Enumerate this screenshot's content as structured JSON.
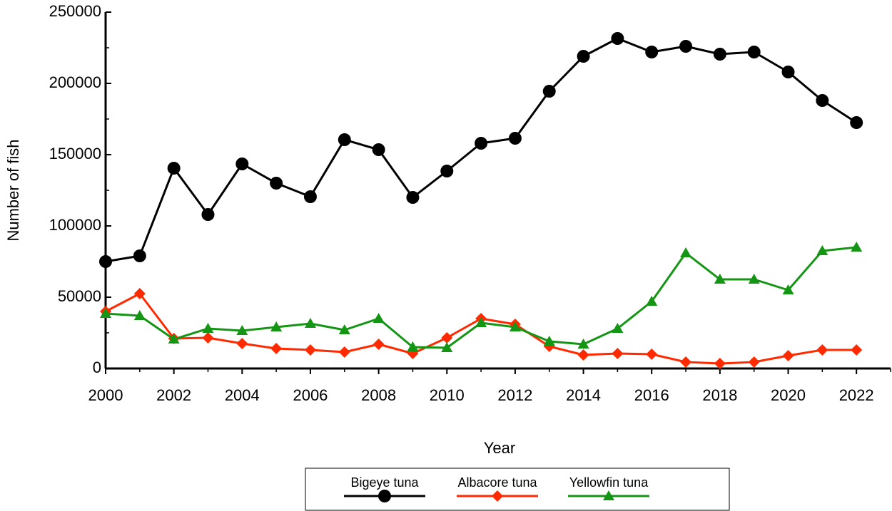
{
  "chart_data": {
    "type": "line",
    "x_label": "Year",
    "y_label": "Number of fish",
    "x": [
      2000,
      2001,
      2002,
      2003,
      2004,
      2005,
      2006,
      2007,
      2008,
      2009,
      2010,
      2011,
      2012,
      2013,
      2014,
      2015,
      2016,
      2017,
      2018,
      2019,
      2020,
      2021,
      2022
    ],
    "series": [
      {
        "name": "Bigeye tuna",
        "color": "#000000",
        "marker": "circle",
        "values": [
          75000,
          79000,
          140500,
          108000,
          143500,
          130000,
          120500,
          160500,
          153500,
          120000,
          138500,
          158000,
          161500,
          194500,
          219000,
          231500,
          222000,
          226000,
          220500,
          222000,
          208000,
          188000,
          172500
        ]
      },
      {
        "name": "Albacore tuna",
        "color": "#ff2a00",
        "marker": "diamond",
        "values": [
          40000,
          52500,
          21000,
          21500,
          17500,
          14000,
          13000,
          11500,
          17000,
          10500,
          21500,
          35000,
          31000,
          15500,
          9500,
          10500,
          10000,
          4500,
          3500,
          4500,
          9000,
          13000,
          13000
        ]
      },
      {
        "name": "Yellowfin tuna",
        "color": "#149614",
        "marker": "triangle",
        "values": [
          38500,
          37000,
          20500,
          28000,
          26500,
          29000,
          31500,
          27000,
          35000,
          15000,
          14500,
          32000,
          29000,
          19000,
          17000,
          28000,
          47000,
          81000,
          62500,
          62500,
          55000,
          82500,
          85000
        ]
      }
    ],
    "xlim": [
      2000,
      2023
    ],
    "xticks": [
      2000,
      2002,
      2004,
      2006,
      2008,
      2010,
      2012,
      2014,
      2016,
      2018,
      2020,
      2022
    ],
    "xminorticks": [
      2001,
      2003,
      2005,
      2007,
      2009,
      2011,
      2013,
      2015,
      2017,
      2019,
      2021,
      2023
    ],
    "ylim": [
      0,
      250000
    ],
    "yticks": [
      0,
      50000,
      100000,
      150000,
      200000,
      250000
    ],
    "yminorticks": [
      25000,
      75000,
      125000,
      175000,
      225000
    ],
    "legend": "bottom"
  }
}
